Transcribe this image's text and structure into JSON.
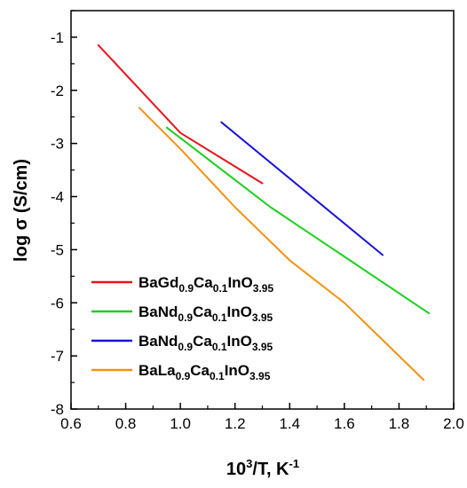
{
  "chart_data": {
    "type": "line",
    "xlabel": {
      "base": "10",
      "sup": "3",
      "rest": "/T, K",
      "sup2": "-1"
    },
    "ylabel": "log σ (S/cm)",
    "xlim": [
      0.6,
      2.0
    ],
    "ylim": [
      -8,
      -0.5
    ],
    "xticks": [
      "0.6",
      "0.8",
      "1.0",
      "1.2",
      "1.4",
      "1.6",
      "1.8",
      "2.0"
    ],
    "yticks": [
      "-1",
      "-2",
      "-3",
      "-4",
      "-5",
      "-6",
      "-7",
      "-8"
    ],
    "grid": false,
    "legend_position": "bottom-left",
    "series": [
      {
        "name": "BaGd0.9Ca0.1InO3.95",
        "formula": [
          {
            "t": "BaGd"
          },
          {
            "s": "0.9"
          },
          {
            "t": "Ca"
          },
          {
            "s": "0.1"
          },
          {
            "t": "InO"
          },
          {
            "s": "3.95"
          }
        ],
        "color": "#e8141c",
        "x": [
          0.7,
          1.0,
          1.3
        ],
        "y": [
          -1.15,
          -2.8,
          -3.75
        ]
      },
      {
        "name": "BaNd0.9Ca0.1InO3.95",
        "formula": [
          {
            "t": "BaNd"
          },
          {
            "s": "0.9"
          },
          {
            "t": "Ca"
          },
          {
            "s": "0.1"
          },
          {
            "t": "InO"
          },
          {
            "s": "3.95"
          }
        ],
        "color": "#1ecf1e",
        "x": [
          0.95,
          1.33,
          1.91
        ],
        "y": [
          -2.7,
          -4.2,
          -6.2
        ]
      },
      {
        "name": "BaNd0.9Ca0.1InO3.95",
        "formula": [
          {
            "t": "BaNd"
          },
          {
            "s": "0.9"
          },
          {
            "t": "Ca"
          },
          {
            "s": "0.1"
          },
          {
            "t": "InO"
          },
          {
            "s": "3.95"
          }
        ],
        "color": "#1a12d8",
        "x": [
          1.15,
          1.74
        ],
        "y": [
          -2.6,
          -5.1
        ]
      },
      {
        "name": "BaLa0.9Ca0.1InO3.95",
        "formula": [
          {
            "t": "BaLa"
          },
          {
            "s": "0.9"
          },
          {
            "t": "Ca"
          },
          {
            "s": "0.1"
          },
          {
            "t": "InO"
          },
          {
            "s": "3.95"
          }
        ],
        "color": "#f59214",
        "x": [
          0.85,
          1.0,
          1.2,
          1.4,
          1.6,
          1.8,
          1.89
        ],
        "y": [
          -2.33,
          -3.1,
          -4.2,
          -5.2,
          -6.0,
          -7.0,
          -7.45
        ]
      }
    ]
  }
}
